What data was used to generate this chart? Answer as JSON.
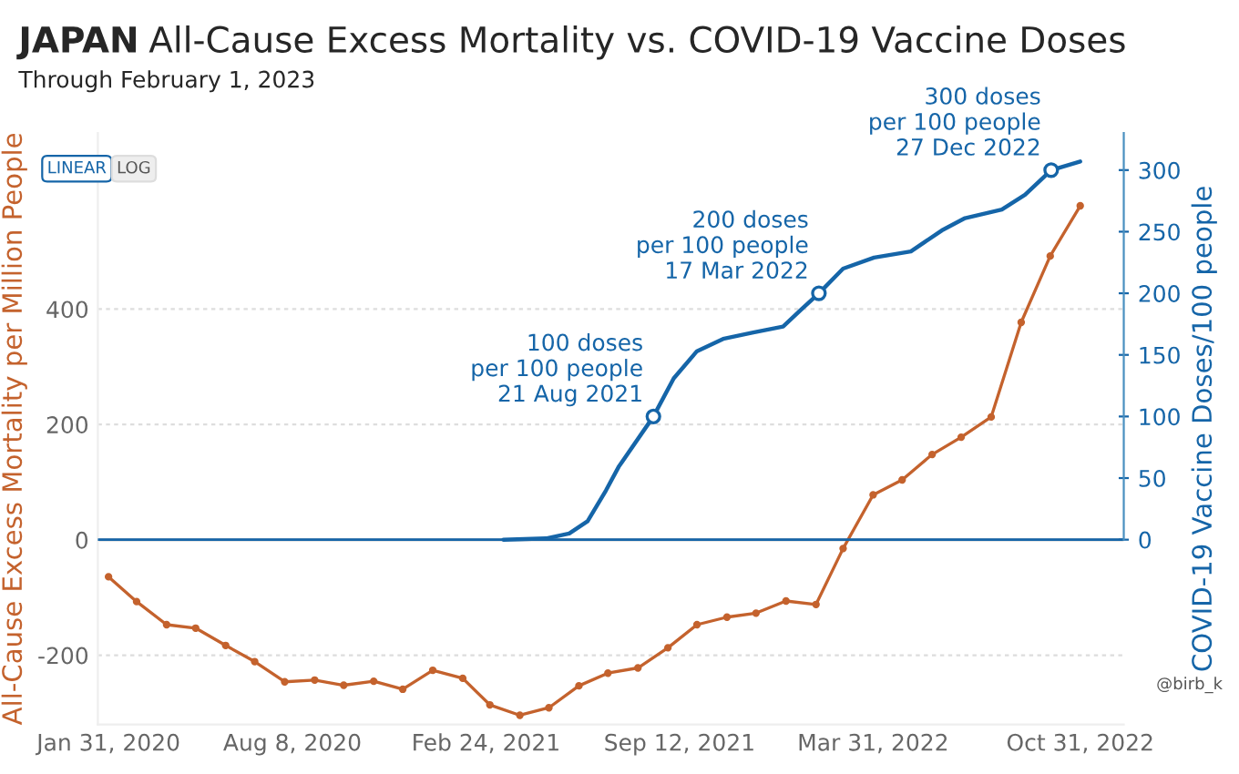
{
  "chart_data": {
    "type": "line",
    "title": "JAPAN All-Cause Excess Mortality vs. COVID-19 Vaccine Doses",
    "subtitle": "Through February 1, 2023",
    "ylabel": "All-Cause Excess Mortality per Million People",
    "y2label": "COVID-19 Vaccine Doses/100 people",
    "series": [
      {
        "color": "#c4622d",
        "marker": "circle",
        "x": [
          "2020-01-31",
          "2020-02-29",
          "2020-03-31",
          "2020-04-30",
          "2020-05-31",
          "2020-06-30",
          "2020-07-31",
          "2020-08-31",
          "2020-09-30",
          "2020-10-31",
          "2020-11-30",
          "2020-12-31",
          "2021-01-31",
          "2021-02-28",
          "2021-03-31",
          "2021-04-30",
          "2021-05-31",
          "2021-06-30",
          "2021-07-31",
          "2021-08-31",
          "2021-09-30",
          "2021-10-31",
          "2021-11-30",
          "2021-12-31",
          "2022-01-31",
          "2022-02-28",
          "2022-03-31",
          "2022-04-30",
          "2022-05-31",
          "2022-06-30",
          "2022-07-31",
          "2022-08-31",
          "2022-09-30",
          "2022-10-31"
        ],
        "values": [
          -64,
          -107,
          -147,
          -153,
          -183,
          -211,
          -246,
          -243,
          -252,
          -245,
          -259,
          -226,
          -240,
          -286,
          -304,
          -291,
          -253,
          -231,
          -222,
          -187,
          -147,
          -134,
          -127,
          -106,
          -112,
          -15,
          78,
          104,
          148,
          178,
          213,
          377,
          492,
          579
        ]
      },
      {
        "color": "#1565a8",
        "axis": "y2",
        "x": [
          "2021-03-14",
          "2021-04-27",
          "2021-05-21",
          "2021-06-09",
          "2021-06-28",
          "2021-07-11",
          "2021-08-16",
          "2021-09-06",
          "2021-09-30",
          "2021-10-27",
          "2021-11-26",
          "2021-12-28",
          "2022-01-16",
          "2022-02-03",
          "2022-02-28",
          "2022-04-01",
          "2022-05-09",
          "2022-06-10",
          "2022-07-04",
          "2022-08-11",
          "2022-09-04",
          "2022-10-01",
          "2022-10-31"
        ],
        "values": [
          0,
          1,
          5,
          15,
          40,
          59,
          100,
          131,
          153,
          163,
          168,
          173,
          187,
          200,
          220,
          229,
          234,
          251,
          261,
          268,
          280,
          300,
          307
        ]
      }
    ],
    "annotations": [
      "100 doses\nper 100 people\n21 Aug 2021",
      "200 doses\nper 100 people\n17 Mar 2022",
      "300 doses\nper 100 people\n27 Dec 2022",
      "LINEAR",
      "LOG",
      "@birb_k"
    ],
    "xlim": [
      "2020-01-20",
      "2022-12-15"
    ],
    "xticks": [
      {
        "value": "2020-01-31",
        "label": "Jan 31, 2020"
      },
      {
        "value": "2020-08-08",
        "label": "Aug 8, 2020"
      },
      {
        "value": "2021-02-24",
        "label": "Feb 24, 2021"
      },
      {
        "value": "2021-09-12",
        "label": "Sep 12, 2021"
      },
      {
        "value": "2022-03-31",
        "label": "Mar 31, 2022"
      },
      {
        "value": "2022-10-31",
        "label": "Oct 31, 2022"
      }
    ],
    "ref_lines": [
      {
        "axis": "y2",
        "value": 0,
        "color": "#1565a8"
      }
    ],
    "ylim": [
      -320,
      705
    ],
    "yticks": [
      -200,
      0,
      200,
      400
    ],
    "y2lim": [
      -150,
      330
    ],
    "y2ticks": [
      0,
      50,
      100,
      150,
      200,
      250,
      300
    ],
    "grid": "y",
    "legend": false
  }
}
